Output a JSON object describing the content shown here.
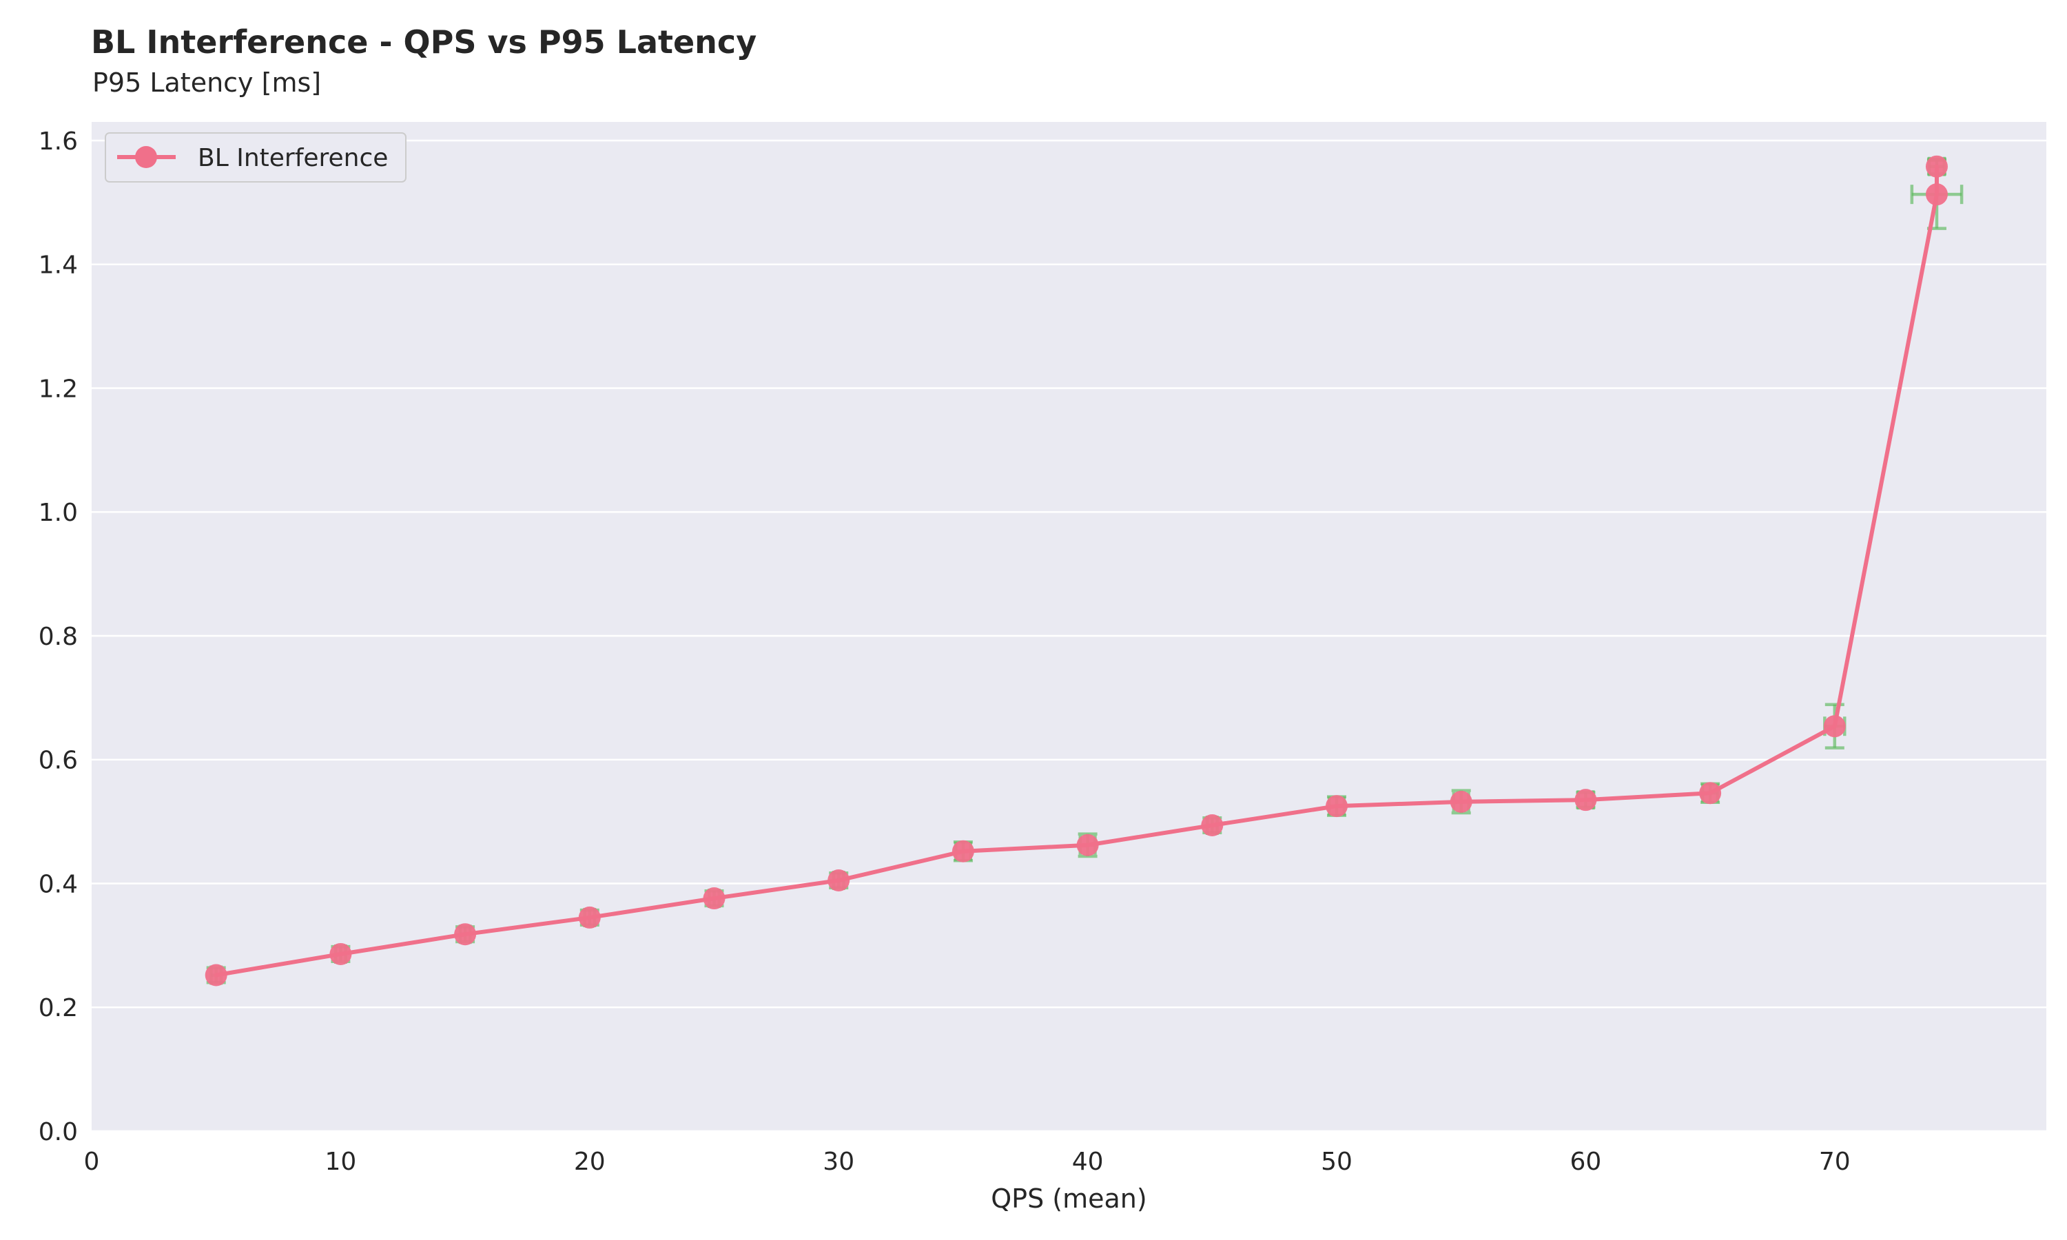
{
  "chart_data": {
    "type": "line",
    "title": "BL Interference - QPS vs P95 Latency",
    "subtitle": "P95 Latency [ms]",
    "xlabel": "QPS (mean)",
    "ylabel": "",
    "xlim": [
      0,
      78.5
    ],
    "ylim": [
      0,
      1.63
    ],
    "xticks": [
      0,
      10,
      20,
      30,
      40,
      50,
      60,
      70
    ],
    "yticks": [
      0.0,
      0.2,
      0.4,
      0.6,
      0.8,
      1.0,
      1.2,
      1.4,
      1.6
    ],
    "ytick_labels": [
      "0.0",
      "0.2",
      "0.4",
      "0.6",
      "0.8",
      "1.0",
      "1.2",
      "1.4",
      "1.6"
    ],
    "grid": true,
    "legend_position": "top-left",
    "colors": {
      "series": "#f0708a",
      "errorbar": "#5cb85c",
      "background": "#eaeaf2"
    },
    "series": [
      {
        "name": "BL Interference",
        "x": [
          5,
          10,
          15,
          20,
          25,
          30,
          35,
          40,
          45,
          50,
          55,
          60,
          65,
          70,
          74.1,
          74.1
        ],
        "y": [
          0.252,
          0.286,
          0.318,
          0.345,
          0.376,
          0.405,
          0.452,
          0.462,
          0.494,
          0.525,
          0.532,
          0.535,
          0.546,
          0.654,
          1.513,
          1.558
        ],
        "y_err": [
          0.012,
          0.012,
          0.012,
          0.012,
          0.012,
          0.012,
          0.015,
          0.018,
          0.012,
          0.015,
          0.018,
          0.012,
          0.015,
          0.035,
          0.055,
          0.012
        ],
        "x_err": [
          0.2,
          0.2,
          0.2,
          0.2,
          0.2,
          0.2,
          0.3,
          0.3,
          0.2,
          0.3,
          0.3,
          0.3,
          0.3,
          0.4,
          1.0,
          0.3
        ]
      }
    ]
  }
}
